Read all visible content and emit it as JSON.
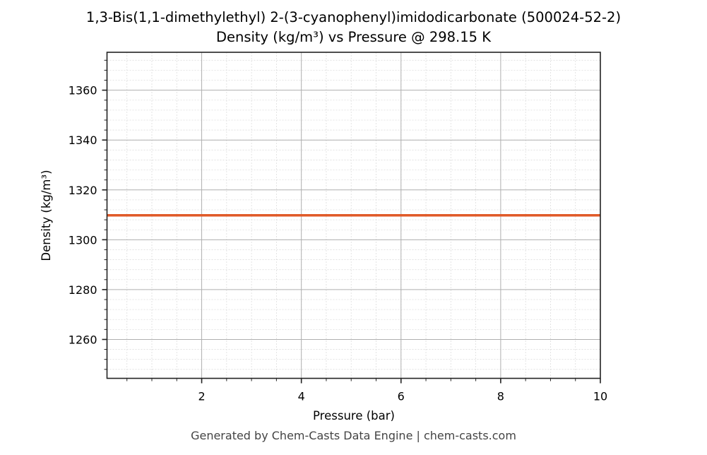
{
  "chart": {
    "title_line1": "1,3-Bis(1,1-dimethylethyl) 2-(3-cyanophenyl)imidodicarbonate (500024-52-2)",
    "title_line2": "Density (kg/m³) vs Pressure @ 298.15 K",
    "xlabel": "Pressure (bar)",
    "ylabel": "Density (kg/m³)",
    "footer": "Generated by Chem-Casts Data Engine | chem-casts.com",
    "line_color": "#e05a28"
  },
  "chart_data": {
    "type": "line",
    "title": "1,3-Bis(1,1-dimethylethyl) 2-(3-cyanophenyl)imidodicarbonate (500024-52-2) Density (kg/m³) vs Pressure @ 298.15 K",
    "xlabel": "Pressure (bar)",
    "ylabel": "Density (kg/m³)",
    "xlim": [
      0.1,
      10
    ],
    "ylim": [
      1244.4,
      1375.2
    ],
    "x_ticks": [
      2,
      4,
      6,
      8,
      10
    ],
    "y_ticks": [
      1260,
      1280,
      1300,
      1320,
      1340,
      1360
    ],
    "x_minor_step": 0.5,
    "y_minor_step": 4,
    "grid": true,
    "legend": null,
    "series": [
      {
        "name": "Density",
        "color": "#e05a28",
        "x": [
          0.1,
          1,
          2,
          3,
          4,
          5,
          6,
          7,
          8,
          9,
          10
        ],
        "y": [
          1309.8,
          1309.8,
          1309.8,
          1309.8,
          1309.8,
          1309.8,
          1309.8,
          1309.8,
          1309.8,
          1309.8,
          1309.8
        ]
      }
    ]
  }
}
